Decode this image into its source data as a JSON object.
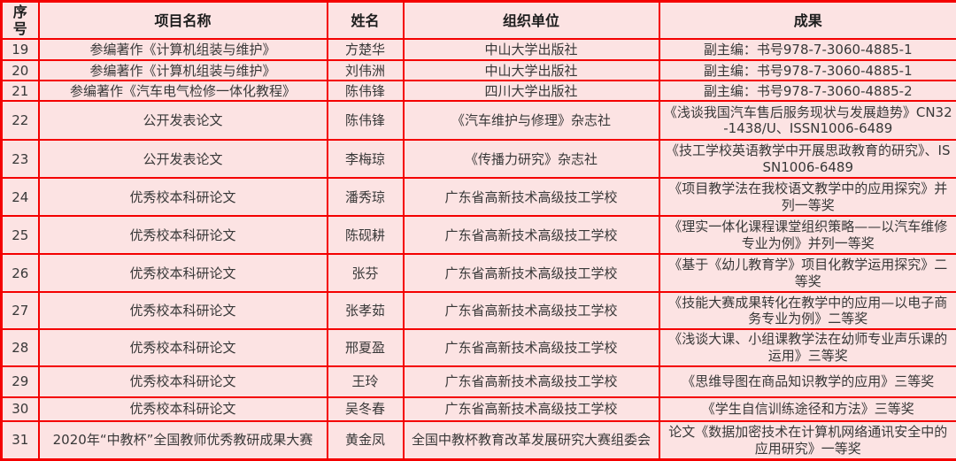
{
  "table": {
    "columns": [
      {
        "key": "num",
        "label": "序号"
      },
      {
        "key": "project",
        "label": "项目名称"
      },
      {
        "key": "name",
        "label": "姓名"
      },
      {
        "key": "org",
        "label": "组织单位"
      },
      {
        "key": "result",
        "label": "成果"
      }
    ],
    "rows": [
      {
        "num": "19",
        "project": "参编著作《计算机组装与维护》",
        "name": "方楚华",
        "org": "中山大学出版社",
        "result": "副主编：书号978-7-3060-4885-1"
      },
      {
        "num": "20",
        "project": "参编著作《计算机组装与维护》",
        "name": "刘伟洲",
        "org": "中山大学出版社",
        "result": "副主编：书号978-7-3060-4885-1"
      },
      {
        "num": "21",
        "project": "参编著作《汽车电气检修一体化教程》",
        "name": "陈伟锋",
        "org": "四川大学出版社",
        "result": "副主编：书号978-7-3060-4885-2"
      },
      {
        "num": "22",
        "project": "公开发表论文",
        "name": "陈伟锋",
        "org": "《汽车维护与修理》杂志社",
        "result": "《浅谈我国汽车售后服务现状与发展趋势》CN32-1438/U、ISSN1006-6489"
      },
      {
        "num": "23",
        "project": "公开发表论文",
        "name": "李梅琼",
        "org": "《传播力研究》杂志社",
        "result": "《技工学校英语教学中开展思政教育的研究》、ISSN1006-6489"
      },
      {
        "num": "24",
        "project": "优秀校本科研论文",
        "name": "潘秀琼",
        "org": "广东省高新技术高级技工学校",
        "result": "《项目教学法在我校语文教学中的应用探究》并列一等奖"
      },
      {
        "num": "25",
        "project": "优秀校本科研论文",
        "name": "陈砚耕",
        "org": "广东省高新技术高级技工学校",
        "result": "《理实一体化课程课堂组织策略——以汽车维修专业为例》并列一等奖"
      },
      {
        "num": "26",
        "project": "优秀校本科研论文",
        "name": "张芬",
        "org": "广东省高新技术高级技工学校",
        "result": "《基于《幼儿教育学》项目化教学运用探究》二等奖"
      },
      {
        "num": "27",
        "project": "优秀校本科研论文",
        "name": "张孝茹",
        "org": "广东省高新技术高级技工学校",
        "result": "《技能大赛成果转化在教学中的应用—以电子商务专业为例》二等奖"
      },
      {
        "num": "28",
        "project": "优秀校本科研论文",
        "name": "邢夏盈",
        "org": "广东省高新技术高级技工学校",
        "result": "《浅谈大课、小组课教学法在幼师专业声乐课的运用》三等奖"
      },
      {
        "num": "29",
        "project": "优秀校本科研论文",
        "name": "王玲",
        "org": "广东省高新技术高级技工学校",
        "result": "《思维导图在商品知识教学的应用》三等奖"
      },
      {
        "num": "30",
        "project": "优秀校本科研论文",
        "name": "吴冬春",
        "org": "广东省高新技术高级技工学校",
        "result": "《学生自信训练途径和方法》三等奖"
      },
      {
        "num": "31",
        "project": "2020年“中教杯”全国教师优秀教研成果大赛",
        "name": "黄金凤",
        "org": "全国中教杯教育改革发展研究大赛组委会",
        "result": "论文《数据加密技术在计算机网络通讯安全中的应用研究》一等奖"
      }
    ],
    "colors": {
      "grid_border": "#f40000",
      "cell_background": "#fce3e3",
      "header_text": "#1d1d1d",
      "body_text": "#383838"
    }
  }
}
